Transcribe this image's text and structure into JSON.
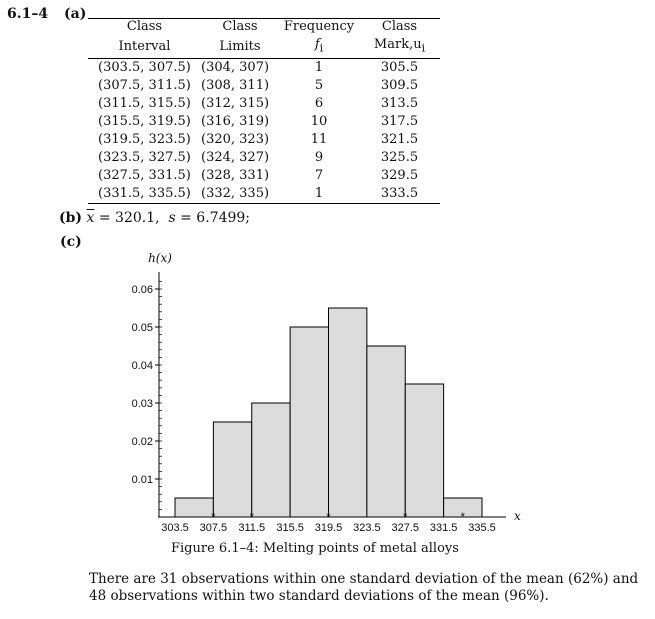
{
  "problem_number": "6.1–4",
  "part_a_label": "(a)",
  "table": {
    "headers": [
      {
        "line1": "Class",
        "line2": "Interval"
      },
      {
        "line1": "Class",
        "line2": "Limits"
      },
      {
        "line1": "Frequency",
        "line2": "f",
        "line2_sub": "i"
      },
      {
        "line1": "Class",
        "line2": "Mark,u",
        "line2_sub": "i"
      }
    ],
    "rows": [
      {
        "interval": "(303.5, 307.5)",
        "limits": "(304, 307)",
        "frequency": "1",
        "mark": "305.5"
      },
      {
        "interval": "(307.5, 311.5)",
        "limits": "(308, 311)",
        "frequency": "5",
        "mark": "309.5"
      },
      {
        "interval": "(311.5, 315.5)",
        "limits": "(312, 315)",
        "frequency": "6",
        "mark": "313.5"
      },
      {
        "interval": "(315.5, 319.5)",
        "limits": "(316, 319)",
        "frequency": "10",
        "mark": "317.5"
      },
      {
        "interval": "(319.5, 323.5)",
        "limits": "(320, 323)",
        "frequency": "11",
        "mark": "321.5"
      },
      {
        "interval": "(323.5, 327.5)",
        "limits": "(324, 327)",
        "frequency": "9",
        "mark": "325.5"
      },
      {
        "interval": "(327.5, 331.5)",
        "limits": "(328, 331)",
        "frequency": "7",
        "mark": "329.5"
      },
      {
        "interval": "(331.5, 335.5)",
        "limits": "(332, 335)",
        "frequency": "1",
        "mark": "333.5"
      }
    ]
  },
  "part_b": {
    "label": "(b)",
    "xbar_symbol": "x",
    "xbar_value": "= 320.1,",
    "s_symbol": "s",
    "s_value": "= 6.7499;"
  },
  "part_c_label": "(c)",
  "chart_data": {
    "type": "bar",
    "ylabel": "h(x)",
    "xlabel": "x",
    "bin_edges": [
      303.5,
      307.5,
      311.5,
      315.5,
      319.5,
      323.5,
      327.5,
      331.5,
      335.5
    ],
    "values": [
      0.005,
      0.025,
      0.03,
      0.05,
      0.055,
      0.045,
      0.035,
      0.005
    ],
    "x_tick_labels": [
      "303.5",
      "307.5",
      "311.5",
      "315.5",
      "319.5",
      "323.5",
      "327.5",
      "331.5",
      "335.5"
    ],
    "y_ticks": [
      0.01,
      0.02,
      0.03,
      0.04,
      0.05,
      0.06
    ],
    "y_tick_labels": [
      "0.01",
      "0.02",
      "0.03",
      "0.04",
      "0.05",
      "0.06"
    ],
    "xlim": [
      303.5,
      335.5
    ],
    "ylim": [
      0,
      0.065
    ],
    "star_markers": [
      307.5,
      311.5,
      319.5,
      327.5,
      333.5
    ],
    "star_symbol": "*",
    "bar_fill": "#dcdcdc",
    "bar_stroke": "#000000"
  },
  "caption": "Figure 6.1–4: Melting points of metal alloys",
  "note": "There are 31 observations within one standard deviation of the mean (62%) and 48 observations within two standard deviations of the mean (96%)."
}
